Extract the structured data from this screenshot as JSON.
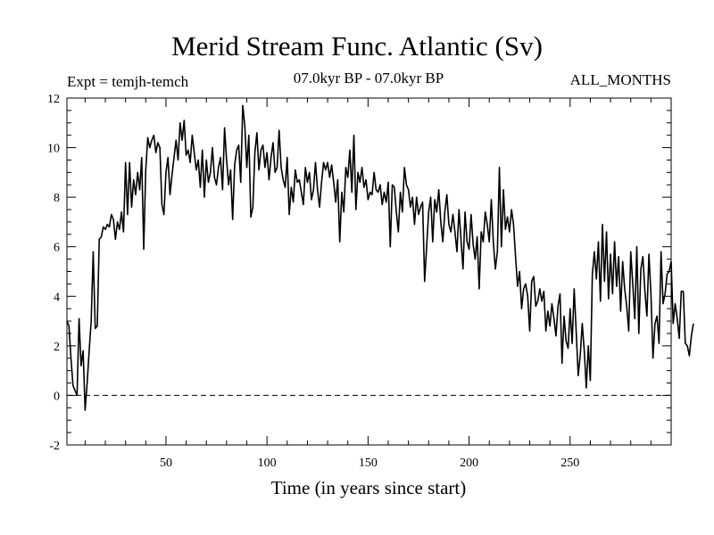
{
  "header": {
    "title": "Merid Stream Func. Atlantic (Sv)",
    "expt": "Expt = temjh-temch",
    "period": "07.0kyr BP - 07.0kyr BP",
    "months": "ALL_MONTHS"
  },
  "chart_data": {
    "type": "line",
    "title": "Merid Stream Func. Atlantic (Sv)",
    "xlabel": "Time (in years since start)",
    "ylabel": "",
    "xlim": [
      1,
      300
    ],
    "ylim": [
      -2,
      12
    ],
    "xticks": [
      50,
      100,
      150,
      200,
      250
    ],
    "yticks": [
      -2,
      0,
      2,
      4,
      6,
      8,
      10,
      12
    ],
    "reference_line": {
      "y": 0,
      "style": "dashed"
    },
    "series": [
      {
        "name": "temjh-temch",
        "x_start": 1,
        "x_step": 1,
        "values": [
          3.0,
          2.8,
          1.5,
          0.4,
          0.2,
          0.0,
          3.1,
          1.2,
          1.8,
          -0.6,
          0.5,
          1.8,
          3.0,
          5.8,
          2.7,
          2.8,
          6.3,
          6.4,
          6.8,
          6.7,
          6.9,
          6.8,
          7.3,
          7.1,
          6.3,
          7.0,
          6.7,
          7.4,
          6.6,
          9.4,
          7.3,
          9.4,
          7.6,
          8.7,
          8.1,
          9.0,
          8.3,
          9.6,
          5.9,
          9.1,
          10.4,
          10.0,
          10.3,
          10.5,
          9.8,
          10.2,
          10.0,
          7.7,
          7.3,
          9.0,
          9.6,
          8.1,
          8.9,
          9.6,
          10.3,
          9.5,
          11.0,
          10.3,
          11.1,
          9.7,
          9.9,
          9.4,
          10.5,
          9.8,
          9.1,
          9.5,
          8.4,
          9.9,
          8.0,
          9.5,
          8.6,
          9.0,
          10.0,
          8.8,
          8.5,
          9.2,
          9.6,
          8.3,
          10.8,
          9.5,
          8.5,
          9.1,
          7.1,
          9.3,
          9.9,
          10.1,
          8.6,
          11.7,
          10.9,
          9.2,
          10.5,
          7.2,
          7.6,
          9.8,
          10.6,
          9.1,
          9.9,
          10.1,
          9.2,
          9.8,
          8.7,
          9.6,
          10.2,
          9.0,
          9.2,
          10.7,
          9.2,
          8.7,
          8.4,
          9.6,
          7.3,
          8.4,
          7.8,
          9.1,
          8.6,
          8.7,
          8.2,
          7.7,
          9.2,
          8.6,
          9.0,
          7.9,
          8.3,
          9.4,
          8.3,
          7.6,
          8.6,
          9.4,
          9.1,
          9.4,
          8.8,
          9.3,
          8.6,
          7.8,
          8.7,
          6.2,
          8.2,
          7.4,
          9.2,
          8.8,
          9.9,
          8.2,
          10.5,
          7.5,
          9.0,
          8.6,
          9.2,
          8.4,
          8.7,
          7.9,
          8.2,
          8.1,
          9.0,
          8.3,
          8.2,
          8.5,
          7.7,
          8.2,
          7.8,
          8.6,
          6.0,
          8.5,
          8.4,
          7.4,
          6.6,
          8.2,
          7.4,
          9.2,
          8.5,
          8.3,
          7.6,
          8.0,
          6.9,
          8.0,
          7.3,
          7.6,
          7.8,
          4.6,
          6.0,
          7.4,
          8.0,
          6.2,
          7.9,
          7.4,
          8.3,
          7.0,
          6.2,
          7.4,
          8.1,
          6.9,
          6.6,
          7.3,
          6.6,
          5.8,
          7.5,
          6.3,
          5.1,
          7.4,
          6.2,
          5.9,
          7.3,
          6.1,
          5.5,
          6.4,
          4.3,
          6.6,
          6.2,
          7.4,
          6.9,
          6.2,
          7.9,
          6.2,
          5.1,
          5.8,
          9.2,
          6.0,
          8.3,
          6.7,
          7.2,
          6.6,
          7.5,
          6.9,
          5.6,
          4.4,
          5.0,
          3.5,
          4.3,
          4.5,
          4.0,
          2.6,
          4.6,
          4.8,
          3.6,
          3.8,
          4.3,
          3.8,
          4.2,
          2.6,
          3.4,
          2.8,
          3.7,
          3.1,
          2.4,
          3.6,
          4.1,
          1.3,
          3.2,
          2.2,
          1.9,
          3.5,
          2.1,
          4.3,
          2.6,
          0.8,
          1.6,
          2.9,
          1.8,
          0.3,
          2.0,
          0.6,
          4.9,
          5.8,
          4.7,
          6.2,
          3.8,
          6.9,
          4.6,
          6.6,
          3.9,
          5.7,
          4.1,
          6.2,
          4.4,
          5.6,
          3.4,
          5.4,
          4.3,
          3.6,
          2.6,
          5.8,
          4.5,
          3.1,
          6.0,
          2.5,
          5.1,
          5.6,
          4.2,
          3.2,
          5.7,
          4.1,
          1.5,
          2.9,
          3.2,
          2.1,
          5.8,
          3.7,
          4.1,
          4.9,
          5.0,
          5.4,
          2.9,
          3.7,
          3.1,
          2.3,
          4.2,
          4.2,
          2.1,
          2.0,
          1.6,
          2.4,
          2.9
        ]
      }
    ]
  }
}
